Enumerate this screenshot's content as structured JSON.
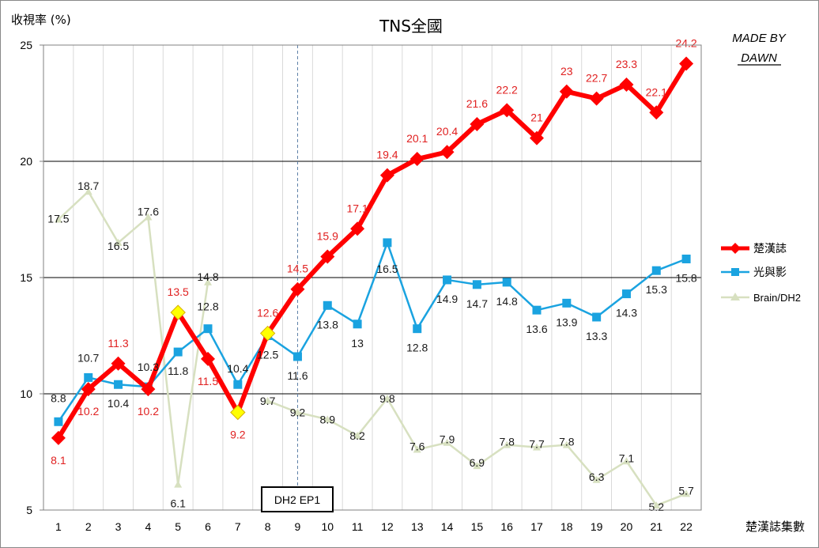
{
  "chart_data": {
    "type": "line",
    "title": "TNS全國",
    "ylabel": "收視率 (%)",
    "xlabel": "楚漢誌集數",
    "watermark_line1": "MADE BY",
    "watermark_line2": "DAWN",
    "annotation": {
      "label": "DH2 EP1",
      "x": 9
    },
    "ylim": [
      5,
      25
    ],
    "yticks": [
      5,
      10,
      15,
      20,
      25
    ],
    "x": [
      1,
      2,
      3,
      4,
      5,
      6,
      7,
      8,
      9,
      10,
      11,
      12,
      13,
      14,
      15,
      16,
      17,
      18,
      19,
      20,
      21,
      22
    ],
    "grid": true,
    "legend_position": "right",
    "series": [
      {
        "name": "楚漢誌",
        "color": "#ff0000",
        "label_color": "#e02020",
        "marker": "diamond",
        "values": [
          8.1,
          10.2,
          11.3,
          10.2,
          13.5,
          11.5,
          9.2,
          12.6,
          14.5,
          15.9,
          17.1,
          19.4,
          20.1,
          20.4,
          21.6,
          22.2,
          21,
          23,
          22.7,
          23.3,
          22.1,
          24.2
        ],
        "labels": [
          "8.1",
          "10.2",
          "11.3",
          "10.2",
          "13.5",
          "11.5",
          "9.2",
          "12.6",
          "14.5",
          "15.9",
          "17.1",
          "19.4",
          "20.1",
          "20.4",
          "21.6",
          "22.2",
          "21",
          "23",
          "22.7",
          "23.3",
          "22.1",
          "24.2"
        ]
      },
      {
        "name": "光與影",
        "color": "#1aa3e0",
        "label_color": "#1a1a1a",
        "marker": "square",
        "values": [
          8.8,
          10.7,
          10.4,
          10.3,
          11.8,
          12.8,
          10.4,
          12.5,
          11.6,
          13.8,
          13,
          16.5,
          12.8,
          14.9,
          14.7,
          14.8,
          13.6,
          13.9,
          13.3,
          14.3,
          15.3,
          15.8
        ],
        "labels": [
          "8.8",
          "10.7",
          "10.4",
          "10.3",
          "11.8",
          "12.8",
          "10.4",
          "12.5",
          "11.6",
          "13.8",
          "13",
          "16.5",
          "12.8",
          "14.9",
          "14.7",
          "14.8",
          "13.6",
          "13.9",
          "13.3",
          "14.3",
          "15.3",
          "15.8"
        ]
      },
      {
        "name": "Brain/DH2",
        "color": "#d7e0c0",
        "label_color": "#1a1a1a",
        "marker": "triangle",
        "segments": [
          {
            "x": [
              1,
              2,
              3,
              4,
              5,
              6
            ],
            "values": [
              17.5,
              18.7,
              16.5,
              17.6,
              6.1,
              14.8
            ]
          },
          {
            "x": [
              8,
              9,
              10,
              11,
              12,
              13,
              14,
              15,
              16,
              17,
              18,
              19,
              20,
              21,
              22
            ],
            "values": [
              9.7,
              9.2,
              8.9,
              8.2,
              9.8,
              7.6,
              7.9,
              6.9,
              7.8,
              7.7,
              7.8,
              6.3,
              7.1,
              5.2,
              5.7
            ]
          }
        ],
        "labels": [
          "17.5",
          "18.7",
          "16.5",
          "17.6",
          "6.1",
          "14.8",
          "9.7",
          "9.2",
          "8.9",
          "8.2",
          "9.8",
          "7.6",
          "7.9",
          "6.9",
          "7.8",
          "7.7",
          "7.8",
          "6.3",
          "7.1",
          "5.2",
          "5.7"
        ]
      }
    ],
    "highlight_points": [
      {
        "series": "楚漢誌",
        "x": 5,
        "color": "#ffff00"
      },
      {
        "series": "楚漢誌",
        "x": 7,
        "color": "#ffff00"
      },
      {
        "series": "楚漢誌",
        "x": 8,
        "color": "#ffff00"
      }
    ]
  }
}
